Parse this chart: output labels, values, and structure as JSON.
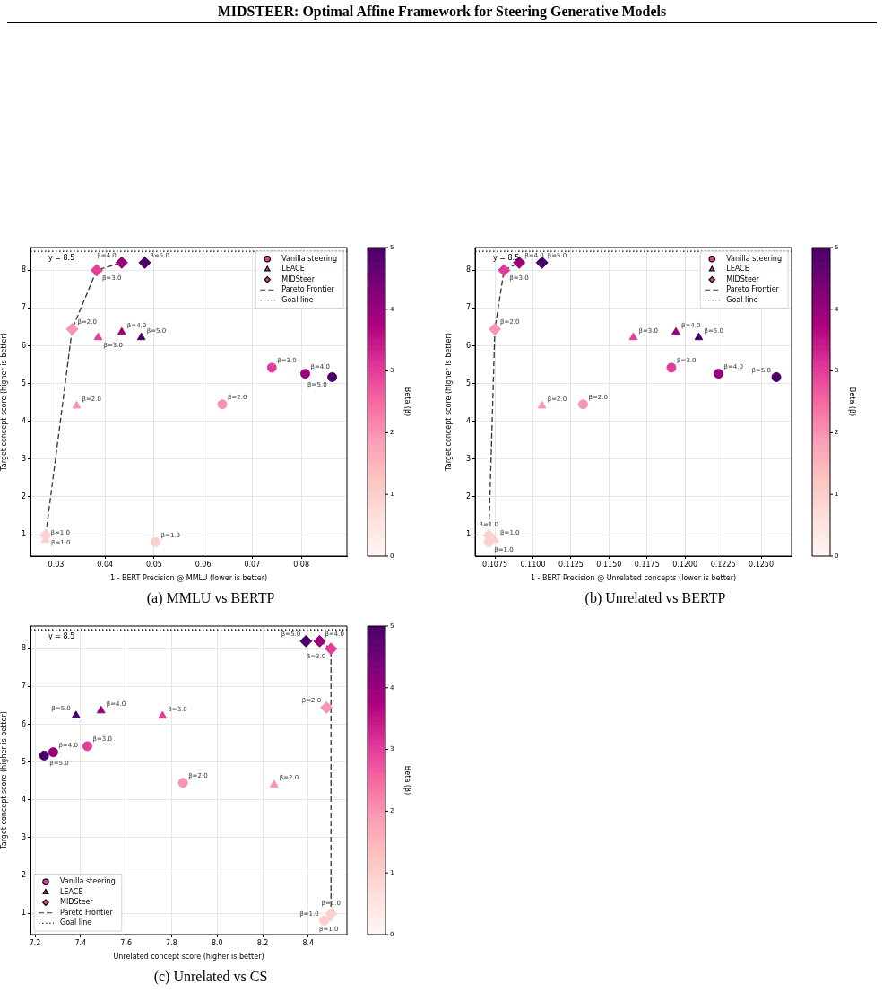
{
  "chart_data": [
    {
      "type": "scatter",
      "title": "(a) MMLU vs BERTP",
      "xlabel": "1 - BERT Precision @ MMLU (lower is better)",
      "ylabel": "Target concept score (higher is better)",
      "clabel": "Beta (β)",
      "clim": [
        0,
        5
      ],
      "cticks": [
        0,
        1,
        2,
        3,
        4,
        5
      ],
      "xlim": [
        0.0248,
        0.0893
      ],
      "ylim": [
        0.43,
        8.6
      ],
      "xticks": [
        0.03,
        0.04,
        0.05,
        0.06,
        0.07,
        0.08
      ],
      "yticks": [
        1,
        2,
        3,
        4,
        5,
        6,
        7,
        8
      ],
      "grid": true,
      "legend": "top right",
      "annotations": [
        "MIDSTEER: Optimal Affine Framework for Steering Generative Models",
        "y = 8.5",
        {
          "text": "β=1.0",
          "x": 0.0503,
          "y": 0.8
        },
        {
          "text": "β=2.0",
          "x": 0.0639,
          "y": 4.45
        },
        {
          "text": "β=3.0",
          "x": 0.074,
          "y": 5.42
        },
        {
          "text": "β=4.0",
          "x": 0.0808,
          "y": 5.26
        },
        {
          "text": "β=5.0",
          "x": 0.0863,
          "y": 5.17
        },
        {
          "text": "β=1.0",
          "x": 0.0278,
          "y": 0.86
        },
        {
          "text": "β=2.0",
          "x": 0.0342,
          "y": 4.41
        },
        {
          "text": "β=3.0",
          "x": 0.0386,
          "y": 6.22
        },
        {
          "text": "β=4.0",
          "x": 0.0434,
          "y": 6.36
        },
        {
          "text": "β=5.0",
          "x": 0.0474,
          "y": 6.22
        },
        {
          "text": "β=1.0",
          "x": 0.0279,
          "y": 0.98
        },
        {
          "text": "β=2.0",
          "x": 0.0333,
          "y": 6.44
        },
        {
          "text": "β=3.0",
          "x": 0.0383,
          "y": 8.0
        },
        {
          "text": "β=4.0",
          "x": 0.0434,
          "y": 8.2
        },
        {
          "text": "β=5.0",
          "x": 0.0481,
          "y": 8.2
        }
      ],
      "ref_lines": [
        {
          "axis": "y",
          "value": 8.5,
          "label": "Goal line",
          "color": "#000000",
          "line_style": "dotted"
        }
      ],
      "series": [
        {
          "name": "Vanilla steering",
          "marker": "circle",
          "cvalues": [
            1,
            2,
            3,
            4,
            5
          ],
          "x": [
            0.0503,
            0.0639,
            0.074,
            0.0808,
            0.0863
          ],
          "values": [
            0.8,
            4.45,
            5.42,
            5.26,
            5.17
          ],
          "colors": [
            "#fcd0cc",
            "#f994b1",
            "#e23e99",
            "#99017b",
            "#49006a"
          ]
        },
        {
          "name": "LEACE",
          "marker": "triangle",
          "cvalues": [
            1,
            2,
            3,
            4,
            5
          ],
          "x": [
            0.0278,
            0.0342,
            0.0386,
            0.0434,
            0.0474
          ],
          "values": [
            0.86,
            4.41,
            6.22,
            6.36,
            6.22
          ],
          "colors": [
            "#fcd0cc",
            "#f994b1",
            "#e23e99",
            "#99017b",
            "#49006a"
          ]
        },
        {
          "name": "MIDSteer",
          "marker": "diamond",
          "cvalues": [
            1,
            2,
            3,
            4,
            5
          ],
          "x": [
            0.0279,
            0.0333,
            0.0383,
            0.0434,
            0.0481
          ],
          "values": [
            0.98,
            6.44,
            8.0,
            8.2,
            8.2
          ],
          "colors": [
            "#fcd0cc",
            "#f994b1",
            "#e23e99",
            "#99017b",
            "#49006a"
          ]
        },
        {
          "name": "Pareto Frontier",
          "type": "line",
          "line_style": "dashed",
          "marker": "none",
          "color": "#333333",
          "x": [
            0.0279,
            0.0333,
            0.0383,
            0.0434
          ],
          "values": [
            0.98,
            6.44,
            8.0,
            8.2
          ]
        }
      ]
    },
    {
      "type": "scatter",
      "title": "(b) Unrelated vs BERTP",
      "xlabel": "1 - BERT Precision @ Unrelated concepts (lower is better)",
      "ylabel": "Target concept score (higher is better)",
      "clabel": "Beta (β)",
      "clim": [
        0,
        5
      ],
      "cticks": [
        0,
        1,
        2,
        3,
        4,
        5
      ],
      "xlim": [
        0.1062,
        0.127
      ],
      "ylim": [
        0.43,
        8.6
      ],
      "xticks": [
        0.1075,
        {
          "value": 0.11,
          "label": "0.1100"
        },
        0.1125,
        {
          "value": 0.115,
          "label": "0.1150"
        },
        0.1175,
        {
          "value": 0.12,
          "label": "0.1200"
        },
        0.1225,
        {
          "value": 0.125,
          "label": "0.1250"
        }
      ],
      "yticks": [
        1,
        2,
        3,
        4,
        5,
        6,
        7,
        8
      ],
      "grid": true,
      "legend": "top right",
      "annotations": [
        "y = 8.5",
        {
          "text": "β=1.0",
          "x": 0.1071,
          "y": 0.8
        },
        {
          "text": "β=2.0",
          "x": 0.1133,
          "y": 4.45
        },
        {
          "text": "β=3.0",
          "x": 0.1191,
          "y": 5.42
        },
        {
          "text": "β=4.0",
          "x": 0.1222,
          "y": 5.26
        },
        {
          "text": "β=5.0",
          "x": 0.126,
          "y": 5.17
        },
        {
          "text": "β=1.0",
          "x": 0.1075,
          "y": 0.86
        },
        {
          "text": "β=2.0",
          "x": 0.1106,
          "y": 4.41
        },
        {
          "text": "β=3.0",
          "x": 0.1166,
          "y": 6.22
        },
        {
          "text": "β=4.0",
          "x": 0.1194,
          "y": 6.36
        },
        {
          "text": "β=5.0",
          "x": 0.1209,
          "y": 6.22
        },
        {
          "text": "β=1.0",
          "x": 0.1071,
          "y": 0.98
        },
        {
          "text": "β=2.0",
          "x": 0.1075,
          "y": 6.44
        },
        {
          "text": "β=3.0",
          "x": 0.1081,
          "y": 8.0
        },
        {
          "text": "β=4.0",
          "x": 0.1091,
          "y": 8.2
        },
        {
          "text": "β=5.0",
          "x": 0.1106,
          "y": 8.2
        }
      ],
      "ref_lines": [
        {
          "axis": "y",
          "value": 8.5,
          "label": "Goal line",
          "color": "#000000",
          "line_style": "dotted"
        }
      ],
      "series": [
        {
          "name": "Vanilla steering",
          "marker": "circle",
          "cvalues": [
            1,
            2,
            3,
            4,
            5
          ],
          "x": [
            0.1071,
            0.1133,
            0.1191,
            0.1222,
            0.126
          ],
          "values": [
            0.8,
            4.45,
            5.42,
            5.26,
            5.17
          ],
          "colors": [
            "#fcd0cc",
            "#f994b1",
            "#e23e99",
            "#99017b",
            "#49006a"
          ]
        },
        {
          "name": "LEACE",
          "marker": "triangle",
          "cvalues": [
            1,
            2,
            3,
            4,
            5
          ],
          "x": [
            0.1075,
            0.1106,
            0.1166,
            0.1194,
            0.1209
          ],
          "values": [
            0.86,
            4.41,
            6.22,
            6.36,
            6.22
          ],
          "colors": [
            "#fcd0cc",
            "#f994b1",
            "#e23e99",
            "#99017b",
            "#49006a"
          ]
        },
        {
          "name": "MIDSteer",
          "marker": "diamond",
          "cvalues": [
            1,
            2,
            3,
            4,
            5
          ],
          "x": [
            0.1071,
            0.1075,
            0.1081,
            0.1091,
            0.1106
          ],
          "values": [
            0.98,
            6.44,
            8.0,
            8.2,
            8.2
          ],
          "colors": [
            "#fcd0cc",
            "#f994b1",
            "#e23e99",
            "#99017b",
            "#49006a"
          ]
        },
        {
          "name": "Pareto Frontier",
          "type": "line",
          "line_style": "dashed",
          "marker": "none",
          "color": "#333333",
          "x": [
            0.1071,
            0.1075,
            0.1081,
            0.1091
          ],
          "values": [
            0.98,
            6.44,
            8.0,
            8.2
          ]
        }
      ]
    },
    {
      "type": "scatter",
      "title": "(c) Unrelated vs CS",
      "xlabel": "Unrelated concept score (higher is better)",
      "ylabel": "Target concept score (higher is better)",
      "clabel": "Beta (β)",
      "clim": [
        0,
        5
      ],
      "cticks": [
        0,
        1,
        2,
        3,
        4,
        5
      ],
      "xlim": [
        7.18,
        8.57
      ],
      "ylim": [
        0.43,
        8.6
      ],
      "xticks": [
        7.2,
        7.4,
        7.6,
        7.8,
        {
          "value": 8,
          "label": "8.0"
        },
        8.2,
        8.4
      ],
      "yticks": [
        1,
        2,
        3,
        4,
        5,
        6,
        7,
        8
      ],
      "grid": true,
      "legend": "bottom left",
      "annotations": [
        "y = 8.5",
        {
          "text": "β=1.0",
          "x": 8.47,
          "y": 0.8
        },
        {
          "text": "β=2.0",
          "x": 7.85,
          "y": 4.45
        },
        {
          "text": "β=3.0",
          "x": 7.43,
          "y": 5.42
        },
        {
          "text": "β=4.0",
          "x": 7.28,
          "y": 5.26
        },
        {
          "text": "β=5.0",
          "x": 7.24,
          "y": 5.17
        },
        {
          "text": "β=1.0",
          "x": 8.49,
          "y": 0.86
        },
        {
          "text": "β=2.0",
          "x": 8.25,
          "y": 4.4
        },
        {
          "text": "β=3.0",
          "x": 7.76,
          "y": 6.22
        },
        {
          "text": "β=4.0",
          "x": 7.49,
          "y": 6.36
        },
        {
          "text": "β=5.0",
          "x": 7.38,
          "y": 6.23
        },
        {
          "text": "β=1.0",
          "x": 8.5,
          "y": 0.98
        },
        {
          "text": "β=2.0",
          "x": 8.48,
          "y": 6.44
        },
        {
          "text": "β=3.0",
          "x": 8.5,
          "y": 8.0
        },
        {
          "text": "β=4.0",
          "x": 8.45,
          "y": 8.2
        },
        {
          "text": "β=5.0",
          "x": 8.39,
          "y": 8.2
        }
      ],
      "ref_lines": [
        {
          "axis": "y",
          "value": 8.5,
          "label": "Goal line",
          "color": "#000000",
          "line_style": "dotted"
        }
      ],
      "series": [
        {
          "name": "Vanilla steering",
          "marker": "circle",
          "cvalues": [
            1,
            2,
            3,
            4,
            5
          ],
          "x": [
            8.47,
            7.85,
            7.43,
            7.28,
            7.24
          ],
          "values": [
            0.8,
            4.45,
            5.42,
            5.26,
            5.17
          ],
          "colors": [
            "#fcd0cc",
            "#f994b1",
            "#e23e99",
            "#99017b",
            "#49006a"
          ]
        },
        {
          "name": "LEACE",
          "marker": "triangle",
          "cvalues": [
            1,
            2,
            3,
            4,
            5
          ],
          "x": [
            8.49,
            8.25,
            7.76,
            7.49,
            7.38
          ],
          "values": [
            0.86,
            4.4,
            6.22,
            6.36,
            6.23
          ],
          "colors": [
            "#fcd0cc",
            "#f994b1",
            "#e23e99",
            "#99017b",
            "#49006a"
          ]
        },
        {
          "name": "MIDSteer",
          "marker": "diamond",
          "cvalues": [
            1,
            2,
            3,
            4,
            5
          ],
          "x": [
            8.5,
            8.48,
            8.5,
            8.45,
            8.39
          ],
          "values": [
            0.98,
            6.44,
            8.0,
            8.2,
            8.2
          ],
          "colors": [
            "#fcd0cc",
            "#f994b1",
            "#e23e99",
            "#99017b",
            "#49006a"
          ]
        },
        {
          "name": "Pareto Frontier",
          "type": "line",
          "line_style": "dashed",
          "marker": "none",
          "color": "#333333",
          "x": [
            8.45,
            8.5,
            8.5
          ],
          "values": [
            8.2,
            8.0,
            0.98
          ]
        }
      ]
    }
  ]
}
